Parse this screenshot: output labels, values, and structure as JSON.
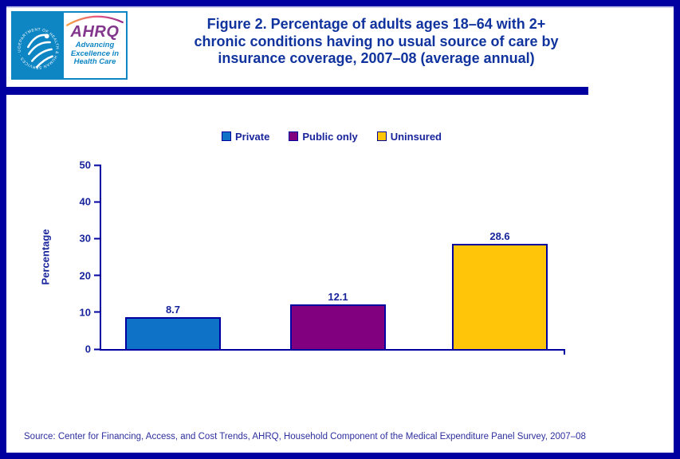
{
  "header": {
    "logo": {
      "seal_text": "DEPARTMENT OF HEALTH & HUMAN SERVICES · USA",
      "ahrq": "AHRQ",
      "tagline_lines": [
        "Advancing",
        "Excellence in",
        "Health Care"
      ]
    },
    "title_lines": [
      "Figure 2. Percentage of adults ages 18–64 with 2+",
      "chronic conditions having no usual source of care by",
      "insurance coverage, 2007–08 (average annual)"
    ]
  },
  "chart_data": {
    "type": "bar",
    "title": "Figure 2. Percentage of adults ages 18–64 with 2+ chronic conditions having no usual source of care by insurance coverage, 2007–08 (average annual)",
    "categories": [
      "Private",
      "Public only",
      "Uninsured"
    ],
    "values": [
      8.7,
      12.1,
      28.6
    ],
    "value_labels": [
      "8.7",
      "12.1",
      "28.6"
    ],
    "xlabel": "",
    "ylabel": "Percentage",
    "ylim": [
      0,
      50
    ],
    "yticks": [
      0,
      10,
      20,
      30,
      40,
      50
    ],
    "grid": false,
    "legend_position": "top-center",
    "bar_colors": [
      "#0e72c6",
      "#800080",
      "#ffc508"
    ]
  },
  "colors": {
    "border_navy": "#0000a0",
    "title_blue": "#10339e",
    "chart_text_navy": "#18249b",
    "hhs_blue": "#0e86c4",
    "ahrq_purple": "#82368c"
  },
  "footer": {
    "source": "Source: Center for Financing, Access, and Cost Trends, AHRQ, Household Component of the Medical Expenditure Panel Survey, 2007–08"
  }
}
